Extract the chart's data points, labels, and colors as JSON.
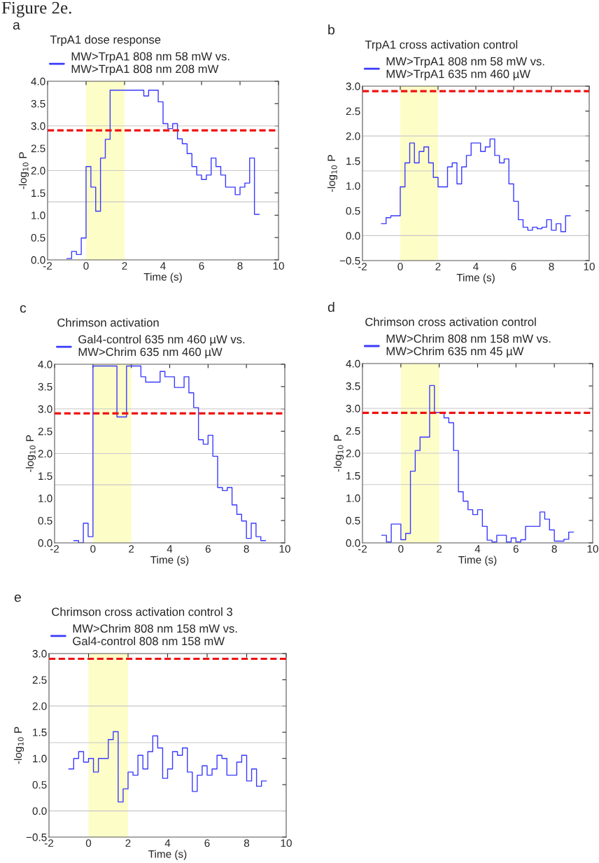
{
  "chart_data": [
    {
      "type": "step",
      "legend_title": "TrpA1 dose response",
      "legend": "top",
      "xlabel": "Time (s)",
      "ylabel": "-log$_{10}$ P",
      "annotations": [
        "Figure 2e.",
        "a"
      ],
      "series": [
        {
          "name": "MW>TrpA1 808 nm 58 mW vs.\nMW>TrpA1 808 nm 208 mW",
          "color": "#3a3aff",
          "x": [
            -1,
            -0.75,
            -0.5,
            -0.25,
            0,
            0.25,
            0.5,
            0.75,
            1,
            1.25,
            1.5,
            1.75,
            2,
            2.25,
            2.5,
            2.75,
            3,
            3.25,
            3.5,
            3.75,
            4,
            4.25,
            4.5,
            4.75,
            5,
            5.25,
            5.5,
            5.75,
            6,
            6.25,
            6.5,
            6.75,
            7,
            7.25,
            7.5,
            7.75,
            8,
            8.25,
            8.5,
            8.75,
            9
          ],
          "values": [
            0.03,
            0.19,
            0.12,
            0.49,
            2.09,
            1.63,
            1.09,
            2.28,
            2.7,
            3.8,
            3.8,
            3.8,
            3.8,
            3.8,
            3.8,
            3.8,
            3.67,
            3.8,
            3.8,
            3.54,
            3.05,
            2.94,
            3.05,
            2.71,
            2.6,
            2.38,
            2.09,
            1.9,
            1.8,
            1.9,
            2.28,
            2.09,
            1.9,
            1.63,
            1.63,
            1.46,
            1.63,
            1.72,
            2.28,
            1.02,
            1.02
          ]
        }
      ],
      "xlim": [
        -2,
        10
      ],
      "xticks": [
        -2,
        0,
        2,
        4,
        6,
        8,
        10
      ],
      "ylim": [
        0,
        4
      ],
      "yticks": [
        {
          "value": 0,
          "label": "0.0"
        },
        {
          "value": 0.5,
          "label": "0.5"
        },
        {
          "value": 1,
          "label": "1.0"
        },
        {
          "value": 1.5,
          "label": "1.5"
        },
        {
          "value": 2,
          "label": "2.0"
        },
        {
          "value": 2.5,
          "label": "2.5"
        },
        {
          "value": 3,
          "label": "3.0"
        },
        {
          "value": 3.5,
          "label": "3.5"
        },
        {
          "value": 4,
          "label": "4.0"
        }
      ],
      "bands": [
        {
          "axis": "x",
          "from": 0,
          "to": 2,
          "color": "#fdfdc8"
        }
      ],
      "ref_lines": [
        {
          "axis": "y",
          "value": 1.3,
          "color": "#c8c8c8",
          "line_style": "solid"
        },
        {
          "axis": "y",
          "value": 2,
          "color": "#c8c8c8",
          "line_style": "solid"
        },
        {
          "axis": "y",
          "value": 3,
          "color": "#c8c8c8",
          "line_style": "solid"
        },
        {
          "axis": "y",
          "value": 2.9,
          "color": "#ee1111",
          "line_style": "dashed"
        }
      ]
    },
    {
      "type": "step",
      "legend_title": "TrpA1 cross activation control",
      "legend": "top",
      "xlabel": "Time (s)",
      "ylabel": "-log$_{10}$ P",
      "annotations": [
        "b"
      ],
      "series": [
        {
          "name": "MW>TrpA1 808 nm 58 mW vs.\nMW>TrpA1 635 nm 460 µW",
          "color": "#3a3aff",
          "x": [
            -1,
            -0.75,
            -0.5,
            -0.25,
            0,
            0.25,
            0.5,
            0.75,
            1,
            1.25,
            1.5,
            1.75,
            2,
            2.25,
            2.5,
            2.75,
            3,
            3.25,
            3.5,
            3.75,
            4,
            4.25,
            4.5,
            4.75,
            5,
            5.25,
            5.5,
            5.75,
            6,
            6.25,
            6.5,
            6.75,
            7,
            7.25,
            7.5,
            7.75,
            8,
            8.25,
            8.5,
            8.75,
            9
          ],
          "values": [
            0.24,
            0.36,
            0.4,
            0.4,
            0.98,
            1.46,
            1.86,
            1.46,
            1.69,
            1.78,
            1.46,
            1.17,
            0.98,
            0.98,
            1.38,
            1.46,
            1.04,
            1.38,
            1.61,
            1.86,
            1.86,
            1.69,
            1.78,
            1.94,
            1.61,
            1.46,
            1.54,
            1.04,
            0.69,
            0.32,
            0.17,
            0.11,
            0.17,
            0.14,
            0.17,
            0.32,
            0.11,
            0.24,
            0.08,
            0.4,
            0.4
          ]
        }
      ],
      "xlim": [
        -2,
        10
      ],
      "xticks": [
        -2,
        0,
        2,
        4,
        6,
        8,
        10
      ],
      "ylim": [
        -0.5,
        3
      ],
      "yticks": [
        {
          "value": -0.5,
          "label": "−0.5"
        },
        {
          "value": 0,
          "label": "0.0"
        },
        {
          "value": 0.5,
          "label": "0.5"
        },
        {
          "value": 1,
          "label": "1.0"
        },
        {
          "value": 1.5,
          "label": "1.5"
        },
        {
          "value": 2,
          "label": "2.0"
        },
        {
          "value": 2.5,
          "label": "2.5"
        },
        {
          "value": 3,
          "label": "3.0"
        }
      ],
      "bands": [
        {
          "axis": "x",
          "from": 0,
          "to": 2,
          "color": "#fdfdc8"
        }
      ],
      "ref_lines": [
        {
          "axis": "y",
          "value": 0,
          "color": "#c8c8c8",
          "line_style": "solid"
        },
        {
          "axis": "y",
          "value": 1.3,
          "color": "#c8c8c8",
          "line_style": "solid"
        },
        {
          "axis": "y",
          "value": 2,
          "color": "#c8c8c8",
          "line_style": "solid"
        },
        {
          "axis": "y",
          "value": 2.9,
          "color": "#ee1111",
          "line_style": "dashed"
        }
      ]
    },
    {
      "type": "step",
      "legend_title": "Chrimson activation",
      "legend": "top",
      "xlabel": "Time (s)",
      "ylabel": "-log$_{10}$ P",
      "annotations": [
        "c"
      ],
      "series": [
        {
          "name": "Gal4-control 635 nm 460 µW vs.\nMW>Chrim 635 nm 460 µW",
          "color": "#3a3aff",
          "x": [
            -1,
            -0.75,
            -0.5,
            -0.25,
            0,
            0.25,
            0.5,
            0.75,
            1,
            1.25,
            1.5,
            1.75,
            2,
            2.25,
            2.5,
            2.75,
            3,
            3.25,
            3.5,
            3.75,
            4,
            4.25,
            4.5,
            4.75,
            5,
            5.25,
            5.5,
            5.75,
            6,
            6.25,
            6.5,
            6.75,
            7,
            7.25,
            7.5,
            7.75,
            8,
            8.25,
            8.5,
            8.75,
            9
          ],
          "values": [
            0.05,
            0,
            0.44,
            0.14,
            3.96,
            3.96,
            3.96,
            3.96,
            3.96,
            2.82,
            2.82,
            3.96,
            3.96,
            3.96,
            3.72,
            3.6,
            3.6,
            3.6,
            3.84,
            3.72,
            3.72,
            3.48,
            3.48,
            3.72,
            3.36,
            3.03,
            2.31,
            2.21,
            2.41,
            1.94,
            1.24,
            1.17,
            1.24,
            0.85,
            0.64,
            0.49,
            0.1,
            0.44,
            0.14,
            0.05,
            0.05
          ]
        }
      ],
      "xlim": [
        -2,
        10
      ],
      "xticks": [
        -2,
        0,
        2,
        4,
        6,
        8,
        10
      ],
      "ylim": [
        0,
        4
      ],
      "yticks": [
        {
          "value": 0,
          "label": "0.0"
        },
        {
          "value": 0.5,
          "label": "0.5"
        },
        {
          "value": 1,
          "label": "1.0"
        },
        {
          "value": 1.5,
          "label": "1.5"
        },
        {
          "value": 2,
          "label": "2.0"
        },
        {
          "value": 2.5,
          "label": "2.5"
        },
        {
          "value": 3,
          "label": "3.0"
        },
        {
          "value": 3.5,
          "label": "3.5"
        },
        {
          "value": 4,
          "label": "4.0"
        }
      ],
      "bands": [
        {
          "axis": "x",
          "from": 0,
          "to": 2,
          "color": "#fdfdc8"
        }
      ],
      "ref_lines": [
        {
          "axis": "y",
          "value": 1.3,
          "color": "#c8c8c8",
          "line_style": "solid"
        },
        {
          "axis": "y",
          "value": 2,
          "color": "#c8c8c8",
          "line_style": "solid"
        },
        {
          "axis": "y",
          "value": 3,
          "color": "#c8c8c8",
          "line_style": "solid"
        },
        {
          "axis": "y",
          "value": 2.9,
          "color": "#ee1111",
          "line_style": "dashed"
        }
      ]
    },
    {
      "type": "step",
      "legend_title": "Chrimson cross activation control",
      "legend": "top",
      "xlabel": "Time (s)",
      "ylabel": "-log$_{10}$ P",
      "annotations": [
        "d"
      ],
      "series": [
        {
          "name": "MW>Chrim 808 nm 158 mW vs.\nMW>Chrim 635 nm 45 µW",
          "color": "#3a3aff",
          "x": [
            -1,
            -0.75,
            -0.5,
            -0.25,
            0,
            0.25,
            0.5,
            0.75,
            1,
            1.25,
            1.5,
            1.75,
            2,
            2.25,
            2.5,
            2.75,
            3,
            3.25,
            3.5,
            3.75,
            4,
            4.25,
            4.5,
            4.75,
            5,
            5.25,
            5.5,
            5.75,
            6,
            6.25,
            6.5,
            6.75,
            7,
            7.25,
            7.5,
            7.75,
            8,
            8.25,
            8.5,
            8.75,
            9
          ],
          "values": [
            0.17,
            0.02,
            0.42,
            0.42,
            0.07,
            0.21,
            1.6,
            2.06,
            2.36,
            2.36,
            3.51,
            2.91,
            2.91,
            2.79,
            2.68,
            2.06,
            1.14,
            0.93,
            0.74,
            0.63,
            0.74,
            0.37,
            0.06,
            0.02,
            0.17,
            0.17,
            0.02,
            0.11,
            0.02,
            0.07,
            0.37,
            0.37,
            0.37,
            0.69,
            0.53,
            0.29,
            0.04,
            0.04,
            0.08,
            0.24,
            0.24
          ]
        }
      ],
      "xlim": [
        -2,
        10
      ],
      "xticks": [
        -2,
        0,
        2,
        4,
        6,
        8,
        10
      ],
      "ylim": [
        0,
        4
      ],
      "yticks": [
        {
          "value": 0,
          "label": "0.0"
        },
        {
          "value": 0.5,
          "label": "0.5"
        },
        {
          "value": 1,
          "label": "1.0"
        },
        {
          "value": 1.5,
          "label": "1.5"
        },
        {
          "value": 2,
          "label": "2.0"
        },
        {
          "value": 2.5,
          "label": "2.5"
        },
        {
          "value": 3,
          "label": "3.0"
        },
        {
          "value": 3.5,
          "label": "3.5"
        },
        {
          "value": 4,
          "label": "4.0"
        }
      ],
      "bands": [
        {
          "axis": "x",
          "from": 0,
          "to": 2,
          "color": "#fdfdc8"
        }
      ],
      "ref_lines": [
        {
          "axis": "y",
          "value": 1.3,
          "color": "#c8c8c8",
          "line_style": "solid"
        },
        {
          "axis": "y",
          "value": 2,
          "color": "#c8c8c8",
          "line_style": "solid"
        },
        {
          "axis": "y",
          "value": 3,
          "color": "#c8c8c8",
          "line_style": "solid"
        },
        {
          "axis": "y",
          "value": 2.9,
          "color": "#ee1111",
          "line_style": "dashed"
        }
      ]
    },
    {
      "type": "step",
      "legend_title": "Chrimson cross activation control 3",
      "legend": "top",
      "xlabel": "Time (s)",
      "ylabel": "-log$_{10}$ P",
      "annotations": [
        "e"
      ],
      "series": [
        {
          "name": "MW>Chrim 808 nm 158 mW vs.\nGal4-control 808 nm 158 mW",
          "color": "#3a3aff",
          "x": [
            -1,
            -0.75,
            -0.5,
            -0.25,
            0,
            0.25,
            0.5,
            0.75,
            1,
            1.25,
            1.5,
            1.75,
            2,
            2.25,
            2.5,
            2.75,
            3,
            3.25,
            3.5,
            3.75,
            4,
            4.25,
            4.5,
            4.75,
            5,
            5.25,
            5.5,
            5.75,
            6,
            6.25,
            6.5,
            6.75,
            7,
            7.25,
            7.5,
            7.75,
            8,
            8.25,
            8.5,
            8.75,
            9
          ],
          "values": [
            0.8,
            1.0,
            1.13,
            0.93,
            1.0,
            0.74,
            1.0,
            1.0,
            1.36,
            1.51,
            0.17,
            0.42,
            0.74,
            0.68,
            1.06,
            0.8,
            1.13,
            1.43,
            1.2,
            0.62,
            0.8,
            1.13,
            1.06,
            1.2,
            0.74,
            0.37,
            0.68,
            0.86,
            0.68,
            0.8,
            1.06,
            1.0,
            0.68,
            0.68,
            0.93,
            1.06,
            0.57,
            0.8,
            0.47,
            0.57,
            0.57
          ]
        }
      ],
      "xlim": [
        -2,
        10
      ],
      "xticks": [
        -2,
        0,
        2,
        4,
        6,
        8,
        10
      ],
      "ylim": [
        -0.5,
        3
      ],
      "yticks": [
        {
          "value": -0.5,
          "label": "−0.5"
        },
        {
          "value": 0,
          "label": "0.0"
        },
        {
          "value": 0.5,
          "label": "0.5"
        },
        {
          "value": 1,
          "label": "1.0"
        },
        {
          "value": 1.5,
          "label": "1.5"
        },
        {
          "value": 2,
          "label": "2.0"
        },
        {
          "value": 2.5,
          "label": "2.5"
        },
        {
          "value": 3,
          "label": "3.0"
        }
      ],
      "bands": [
        {
          "axis": "x",
          "from": 0,
          "to": 2,
          "color": "#fdfdc8"
        }
      ],
      "ref_lines": [
        {
          "axis": "y",
          "value": 0,
          "color": "#c8c8c8",
          "line_style": "solid"
        },
        {
          "axis": "y",
          "value": 1.3,
          "color": "#c8c8c8",
          "line_style": "solid"
        },
        {
          "axis": "y",
          "value": 2,
          "color": "#c8c8c8",
          "line_style": "solid"
        },
        {
          "axis": "y",
          "value": 2.9,
          "color": "#ee1111",
          "line_style": "dashed"
        }
      ]
    }
  ]
}
